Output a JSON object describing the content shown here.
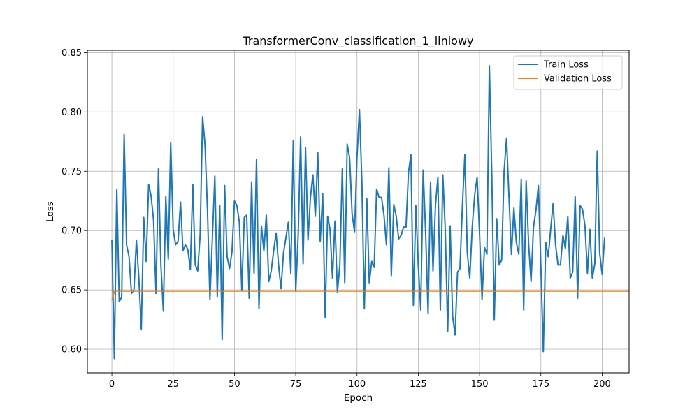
{
  "chart_data": {
    "type": "line",
    "title": "TransformerConv_classification_1_liniowy",
    "xlabel": "Epoch",
    "ylabel": "Loss",
    "xlim": [
      -10,
      211
    ],
    "ylim": [
      0.58,
      0.852
    ],
    "xticks": [
      0,
      25,
      50,
      75,
      100,
      125,
      150,
      175,
      200
    ],
    "yticks": [
      0.6,
      0.65,
      0.7,
      0.75,
      0.8,
      0.85
    ],
    "ytick_labels": [
      "0.60",
      "0.65",
      "0.70",
      "0.75",
      "0.80",
      "0.85"
    ],
    "grid": true,
    "legend_position": "top-right",
    "series": [
      {
        "name": "Train Loss",
        "color": "#1f77b4",
        "x_start": 0,
        "values": [
          0.692,
          0.592,
          0.735,
          0.64,
          0.644,
          0.781,
          0.688,
          0.678,
          0.647,
          0.65,
          0.692,
          0.66,
          0.617,
          0.711,
          0.674,
          0.739,
          0.729,
          0.709,
          0.647,
          0.752,
          0.671,
          0.632,
          0.729,
          0.676,
          0.774,
          0.701,
          0.688,
          0.691,
          0.724,
          0.683,
          0.688,
          0.684,
          0.667,
          0.739,
          0.671,
          0.666,
          0.696,
          0.796,
          0.772,
          0.717,
          0.642,
          0.694,
          0.746,
          0.644,
          0.721,
          0.608,
          0.738,
          0.678,
          0.668,
          0.682,
          0.725,
          0.721,
          0.707,
          0.65,
          0.711,
          0.713,
          0.643,
          0.741,
          0.664,
          0.76,
          0.634,
          0.704,
          0.683,
          0.713,
          0.657,
          0.666,
          0.683,
          0.698,
          0.671,
          0.651,
          0.681,
          0.694,
          0.707,
          0.664,
          0.776,
          0.649,
          0.696,
          0.779,
          0.672,
          0.77,
          0.692,
          0.728,
          0.747,
          0.712,
          0.766,
          0.691,
          0.731,
          0.627,
          0.712,
          0.701,
          0.66,
          0.708,
          0.648,
          0.671,
          0.752,
          0.656,
          0.773,
          0.761,
          0.714,
          0.699,
          0.762,
          0.802,
          0.741,
          0.634,
          0.727,
          0.656,
          0.674,
          0.669,
          0.735,
          0.728,
          0.728,
          0.713,
          0.688,
          0.753,
          0.662,
          0.722,
          0.712,
          0.693,
          0.696,
          0.703,
          0.703,
          0.749,
          0.764,
          0.637,
          0.721,
          0.671,
          0.633,
          0.751,
          0.698,
          0.63,
          0.741,
          0.666,
          0.721,
          0.745,
          0.633,
          0.747,
          0.701,
          0.615,
          0.704,
          0.628,
          0.612,
          0.665,
          0.668,
          0.721,
          0.764,
          0.681,
          0.66,
          0.703,
          0.73,
          0.745,
          0.697,
          0.642,
          0.686,
          0.68,
          0.839,
          0.746,
          0.625,
          0.71,
          0.671,
          0.675,
          0.75,
          0.778,
          0.728,
          0.68,
          0.719,
          0.69,
          0.68,
          0.743,
          0.633,
          0.742,
          0.689,
          0.657,
          0.703,
          0.717,
          0.738,
          0.67,
          0.598,
          0.69,
          0.678,
          0.701,
          0.723,
          0.688,
          0.671,
          0.671,
          0.696,
          0.685,
          0.712,
          0.66,
          0.665,
          0.729,
          0.643,
          0.721,
          0.718,
          0.704,
          0.664,
          0.701,
          0.66,
          0.672,
          0.767,
          0.681,
          0.663,
          0.694
        ]
      },
      {
        "name": "Validation Loss",
        "color": "#ff7f0e",
        "x_start": 0,
        "values": [
          0.641,
          0.649,
          0.649,
          0.649,
          0.649,
          0.649,
          0.649,
          0.649,
          0.649,
          0.649,
          0.649,
          0.649,
          0.649,
          0.649,
          0.649,
          0.649,
          0.649,
          0.649,
          0.649,
          0.649,
          0.649,
          0.649,
          0.649,
          0.649,
          0.649,
          0.649,
          0.649,
          0.649,
          0.649,
          0.649,
          0.649,
          0.649,
          0.649,
          0.649,
          0.649,
          0.649,
          0.649,
          0.649,
          0.649,
          0.649,
          0.649,
          0.649,
          0.649,
          0.649,
          0.649,
          0.649,
          0.649,
          0.649,
          0.649,
          0.649,
          0.649,
          0.649,
          0.649,
          0.649,
          0.649,
          0.649,
          0.649,
          0.649,
          0.649,
          0.649,
          0.649,
          0.649,
          0.649,
          0.649,
          0.649,
          0.649,
          0.649,
          0.649,
          0.649,
          0.649,
          0.649,
          0.649,
          0.649,
          0.649,
          0.649,
          0.649,
          0.649,
          0.649,
          0.649,
          0.649,
          0.649,
          0.649,
          0.649,
          0.649,
          0.649,
          0.649,
          0.649,
          0.649,
          0.649,
          0.649,
          0.649,
          0.649,
          0.649,
          0.649,
          0.649,
          0.649,
          0.649,
          0.649,
          0.649,
          0.649,
          0.649,
          0.649,
          0.649,
          0.649,
          0.649,
          0.649,
          0.649,
          0.649,
          0.649,
          0.649,
          0.649,
          0.649,
          0.649,
          0.649,
          0.649,
          0.649,
          0.649,
          0.649,
          0.649,
          0.649,
          0.649,
          0.649,
          0.649,
          0.649,
          0.649,
          0.649,
          0.649,
          0.649,
          0.649,
          0.649,
          0.649,
          0.649,
          0.649,
          0.649,
          0.649,
          0.649,
          0.649,
          0.649,
          0.649,
          0.649,
          0.649,
          0.649,
          0.649,
          0.649,
          0.649,
          0.649,
          0.649,
          0.649,
          0.649,
          0.649,
          0.649,
          0.649,
          0.649,
          0.649,
          0.649,
          0.649,
          0.649,
          0.649,
          0.649,
          0.649,
          0.649,
          0.649,
          0.649,
          0.649,
          0.649,
          0.649,
          0.649,
          0.649,
          0.649,
          0.649,
          0.649,
          0.649,
          0.649,
          0.649,
          0.649,
          0.649,
          0.649,
          0.649,
          0.649,
          0.649,
          0.649,
          0.649,
          0.649,
          0.649,
          0.649,
          0.649,
          0.649,
          0.649,
          0.649,
          0.649,
          0.649,
          0.649,
          0.649,
          0.649,
          0.649,
          0.649,
          0.649,
          0.649,
          0.649,
          0.649,
          0.649,
          0.649,
          0.649,
          0.649,
          0.649,
          0.649,
          0.649,
          0.649,
          0.649,
          0.649,
          0.649,
          0.649
        ]
      }
    ]
  }
}
